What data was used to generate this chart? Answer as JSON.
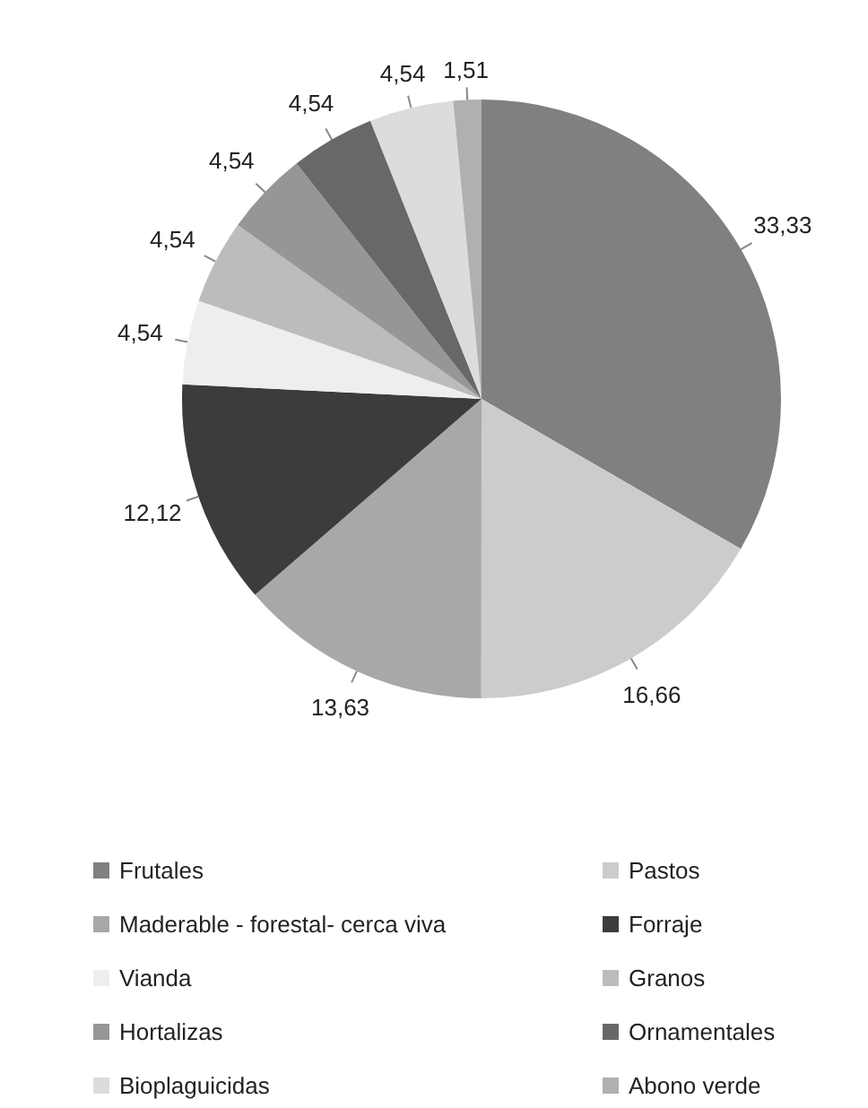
{
  "chart_data": {
    "type": "pie",
    "categories": [
      "Frutales",
      "Pastos",
      "Maderable - forestal- cerca viva",
      "Forraje",
      "Vianda",
      "Granos",
      "Hortalizas",
      "Ornamentales",
      "Bioplaguicidas",
      "Abono verde"
    ],
    "values": [
      33.33,
      16.66,
      13.63,
      12.12,
      4.54,
      4.54,
      4.54,
      4.54,
      4.54,
      1.51
    ],
    "value_labels": [
      "33,33",
      "16,66",
      "13,63",
      "12,12",
      "4,54",
      "4,54",
      "4,54",
      "4,54",
      "4,54",
      "1,51"
    ],
    "colors": [
      "#808080",
      "#cccccc",
      "#a8a8a8",
      "#3c3c3c",
      "#eeeeee",
      "#bcbcbc",
      "#969696",
      "#686868",
      "#dcdcdc",
      "#b0b0b0"
    ],
    "legend": "bottom"
  }
}
